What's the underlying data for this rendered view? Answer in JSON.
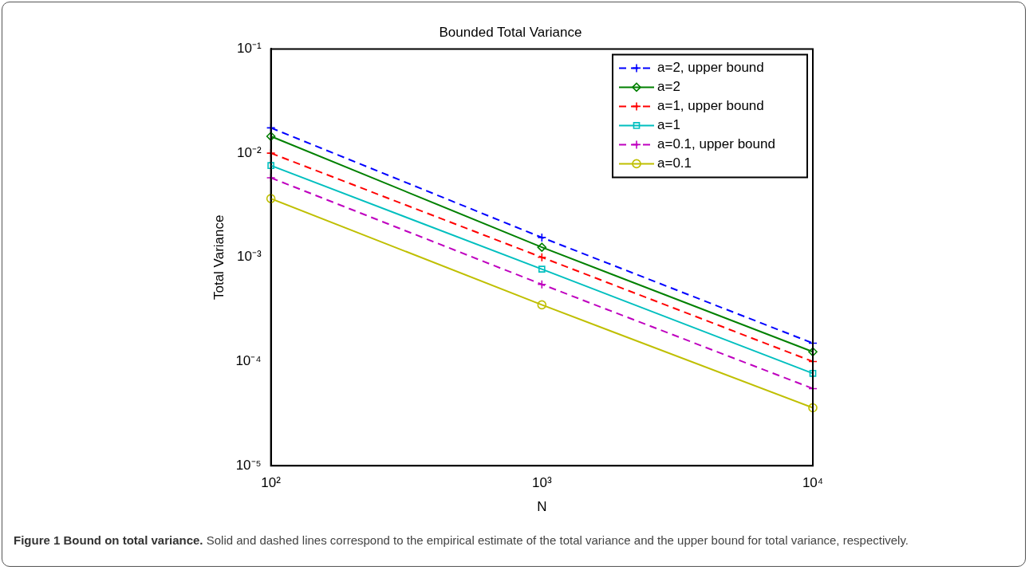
{
  "chart_data": {
    "type": "line",
    "title": "Bounded Total Variance",
    "xlabel": "N",
    "ylabel": "Total Variance",
    "x": [
      100,
      1000,
      10000
    ],
    "series": [
      {
        "name": "a=2, upper bound",
        "color": "#0000ff",
        "values": [
          0.0175,
          0.00155,
          0.00015
        ],
        "marker": "cross",
        "line_style": "dashed"
      },
      {
        "name": "a=2",
        "color": "#008000",
        "values": [
          0.0145,
          0.00125,
          0.000124
        ],
        "marker": "diamond",
        "line_style": "solid"
      },
      {
        "name": "a=1, upper bound",
        "color": "#ff0000",
        "values": [
          0.01,
          0.001,
          0.0001
        ],
        "marker": "cross",
        "line_style": "dashed"
      },
      {
        "name": "a=1",
        "color": "#00bfbf",
        "values": [
          0.0076,
          0.00077,
          7.7e-05
        ],
        "marker": "square",
        "line_style": "solid"
      },
      {
        "name": "a=0.1, upper bound",
        "color": "#bf00bf",
        "values": [
          0.0058,
          0.00055,
          5.5e-05
        ],
        "marker": "cross",
        "line_style": "dashed"
      },
      {
        "name": "a=0.1",
        "color": "#bfbf00",
        "values": [
          0.00366,
          0.00035,
          3.6e-05
        ],
        "marker": "circle",
        "line_style": "solid"
      }
    ],
    "log": "xy",
    "grid": false,
    "legend": "top right",
    "xlim": [
      100,
      10000
    ],
    "xticks": [
      {
        "value": 100,
        "label": "10²"
      },
      {
        "value": 1000,
        "label": "10³"
      },
      {
        "value": 10000,
        "label": "10⁴"
      }
    ],
    "ylim": [
      1e-05,
      0.1
    ],
    "yticks": [
      {
        "value": 1e-05,
        "label": "10⁻⁵"
      },
      {
        "value": 0.0001,
        "label": "10⁻⁴"
      },
      {
        "value": 0.001,
        "label": "10⁻³"
      },
      {
        "value": 0.01,
        "label": "10⁻²"
      },
      {
        "value": 0.1,
        "label": "10⁻¹"
      }
    ],
    "annotations": [
      "Figure 1 Bound on total variance.",
      "Solid and dashed lines correspond to the empirical estimate of the total variance and the upper bound for total variance, respectively."
    ]
  }
}
